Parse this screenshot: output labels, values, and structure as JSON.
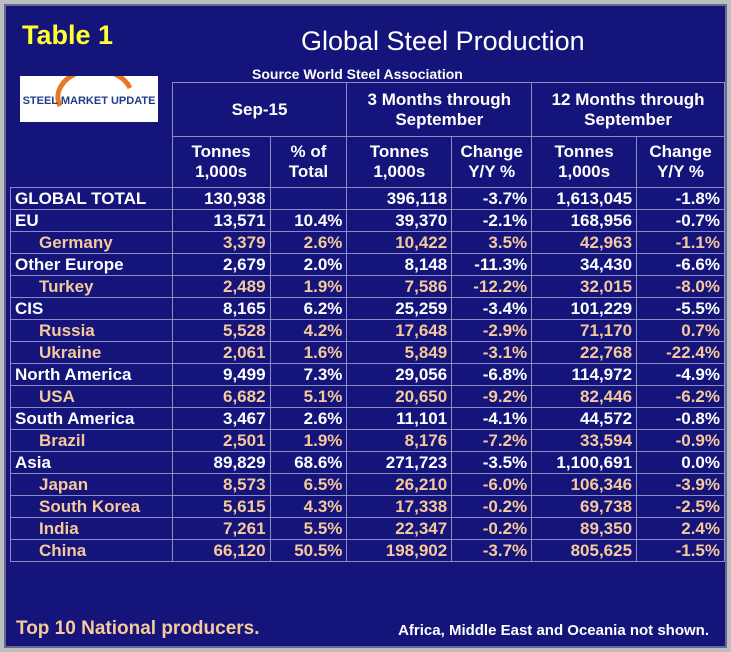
{
  "header": {
    "label": "Table 1",
    "title": "Global Steel Production",
    "source": "Source World Steel Association",
    "logo": "STEEL MARKET UPDATE"
  },
  "table": {
    "groups": [
      {
        "lines": [
          "Sep-15"
        ]
      },
      {
        "lines": [
          "3 Months through",
          "September"
        ]
      },
      {
        "lines": [
          "12 Months through",
          "September"
        ]
      }
    ],
    "subheaders": [
      [
        "Tonnes",
        "1,000s"
      ],
      [
        "% of",
        "Total"
      ],
      [
        "Tonnes",
        "1,000s"
      ],
      [
        "Change",
        "Y/Y %"
      ],
      [
        "Tonnes",
        "1,000s"
      ],
      [
        "Change",
        "Y/Y %"
      ]
    ],
    "country_color": "#f6c99b",
    "rows": [
      {
        "cells": [
          "GLOBAL TOTAL",
          "130,938",
          null,
          "396,118",
          "-3.7%",
          "1,613,045",
          "-1.8%"
        ],
        "children": []
      },
      {
        "cells": [
          "EU",
          "13,571",
          "10.4%",
          "39,370",
          "-2.1%",
          "168,956",
          "-0.7%"
        ],
        "children": [
          {
            "cells": [
              "Germany",
              "3,379",
              "2.6%",
              "10,422",
              "3.5%",
              "42,963",
              "-1.1%"
            ]
          }
        ]
      },
      {
        "cells": [
          "Other Europe",
          "2,679",
          "2.0%",
          "8,148",
          "-11.3%",
          "34,430",
          "-6.6%"
        ],
        "children": [
          {
            "cells": [
              "Turkey",
              "2,489",
              "1.9%",
              "7,586",
              "-12.2%",
              "32,015",
              "-8.0%"
            ]
          }
        ]
      },
      {
        "cells": [
          "CIS",
          "8,165",
          "6.2%",
          "25,259",
          "-3.4%",
          "101,229",
          "-5.5%"
        ],
        "children": [
          {
            "cells": [
              "Russia",
              "5,528",
              "4.2%",
              "17,648",
              "-2.9%",
              "71,170",
              "0.7%"
            ]
          },
          {
            "cells": [
              "Ukraine",
              "2,061",
              "1.6%",
              "5,849",
              "-3.1%",
              "22,768",
              "-22.4%"
            ]
          }
        ]
      },
      {
        "cells": [
          "North America",
          "9,499",
          "7.3%",
          "29,056",
          "-6.8%",
          "114,972",
          "-4.9%"
        ],
        "children": [
          {
            "cells": [
              "USA",
              "6,682",
              "5.1%",
              "20,650",
              "-9.2%",
              "82,446",
              "-6.2%"
            ]
          }
        ]
      },
      {
        "cells": [
          "South America",
          "3,467",
          "2.6%",
          "11,101",
          "-4.1%",
          "44,572",
          "-0.8%"
        ],
        "children": [
          {
            "cells": [
              "Brazil",
              "2,501",
              "1.9%",
              "8,176",
              "-7.2%",
              "33,594",
              "-0.9%"
            ]
          }
        ]
      },
      {
        "cells": [
          "Asia",
          "89,829",
          "68.6%",
          "271,723",
          "-3.5%",
          "1,100,691",
          "0.0%"
        ],
        "children": [
          {
            "cells": [
              "Japan",
              "8,573",
              "6.5%",
              "26,210",
              "-6.0%",
              "106,346",
              "-3.9%"
            ]
          },
          {
            "cells": [
              "South Korea",
              "5,615",
              "4.3%",
              "17,338",
              "-0.2%",
              "69,738",
              "-2.5%"
            ]
          },
          {
            "cells": [
              "India",
              "7,261",
              "5.5%",
              "22,347",
              "-0.2%",
              "89,350",
              "2.4%"
            ]
          },
          {
            "cells": [
              "China",
              "66,120",
              "50.5%",
              "198,902",
              "-3.7%",
              "805,625",
              "-1.5%"
            ]
          }
        ]
      }
    ]
  },
  "footer": {
    "left": "Top 10 National producers.",
    "right": "Africa, Middle East and Oceania not shown."
  }
}
